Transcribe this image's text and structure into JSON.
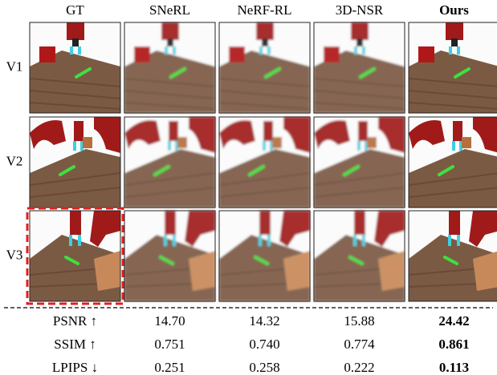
{
  "columns": [
    "GT",
    "SNeRL",
    "NeRF-RL",
    "3D-NSR",
    "Ours"
  ],
  "rows": [
    "V1",
    "V2",
    "V3"
  ],
  "metrics": [
    {
      "name": "PSNR ↑",
      "values": [
        "14.70",
        "14.32",
        "15.88",
        "24.42"
      ]
    },
    {
      "name": "SSIM ↑",
      "values": [
        "0.751",
        "0.740",
        "0.774",
        "0.861"
      ]
    },
    {
      "name": "LPIPS ↓",
      "values": [
        "0.251",
        "0.258",
        "0.222",
        "0.113"
      ]
    }
  ]
}
